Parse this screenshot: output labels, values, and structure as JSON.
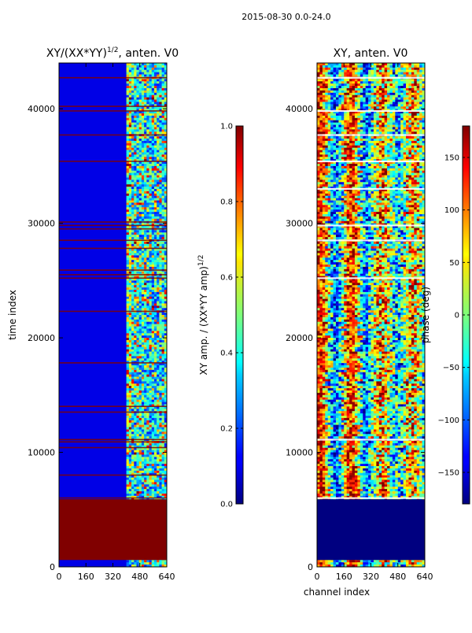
{
  "suptitle": "2015-08-30 0.0-24.0",
  "charts": [
    {
      "id": "left",
      "title_main": "XY/(XX*YY)",
      "title_sup": "1/2",
      "title_tail": ", anten. V0"
    },
    {
      "id": "right",
      "title_main": "XY, anten. V0"
    }
  ],
  "labels": {
    "ylabel": "time index",
    "xlabel": "channel index",
    "cb1_label_main": "XY amp. / (XX*YY amp)",
    "cb1_label_sup": "1/2",
    "cb2_label": "phase (deg)"
  },
  "chart_data": [
    {
      "type": "heatmap",
      "title": "XY/(XX*YY)^1/2, anten. V0",
      "xlabel": "",
      "ylabel": "time index",
      "xlim": [
        0,
        640
      ],
      "ylim": [
        0,
        44000
      ],
      "x_ticks": [
        0,
        160,
        320,
        480,
        640
      ],
      "y_ticks": [
        0,
        10000,
        20000,
        30000,
        40000
      ],
      "colormap": "jet",
      "colorbar": {
        "label": "XY amp. / (XX*YY amp)^1/2",
        "range": [
          0.0,
          1.0
        ],
        "ticks": [
          0.0,
          0.2,
          0.4,
          0.6,
          0.8,
          1.0
        ],
        "tick_labels": [
          "0.0",
          "0.2",
          "0.4",
          "0.6",
          "0.8",
          "1.0"
        ]
      },
      "background_value": 0.1,
      "active_band_channels": [
        400,
        640
      ],
      "flagged_block": {
        "time_range": [
          600,
          5900
        ],
        "value": 1.0
      },
      "flagged_rows": [
        6000,
        8000,
        10400,
        10900,
        11100,
        13500,
        14000,
        17800,
        22300,
        25200,
        25500,
        25900,
        27800,
        28500,
        29500,
        29800,
        30100,
        35400,
        37700,
        39800,
        40200,
        42700
      ]
    },
    {
      "type": "heatmap",
      "title": "XY, anten. V0",
      "xlabel": "channel index",
      "ylabel": "",
      "xlim": [
        0,
        640
      ],
      "ylim": [
        0,
        44000
      ],
      "x_ticks": [
        0,
        160,
        320,
        480,
        640
      ],
      "y_ticks": [
        0,
        10000,
        20000,
        30000,
        40000
      ],
      "colormap": "jet",
      "colorbar": {
        "label": "phase (deg)",
        "range": [
          -180,
          180
        ],
        "ticks": [
          -150,
          -100,
          -50,
          0,
          50,
          100,
          150
        ],
        "tick_labels": [
          "−150",
          "−100",
          "−50",
          "0",
          "50",
          "100",
          "150"
        ]
      },
      "flagged_block": {
        "time_range": [
          600,
          5900
        ],
        "value": -180
      },
      "flagged_rows": [
        6000,
        11100,
        25200,
        28500,
        29800,
        33000,
        35400,
        37700,
        39800,
        42700
      ]
    }
  ]
}
